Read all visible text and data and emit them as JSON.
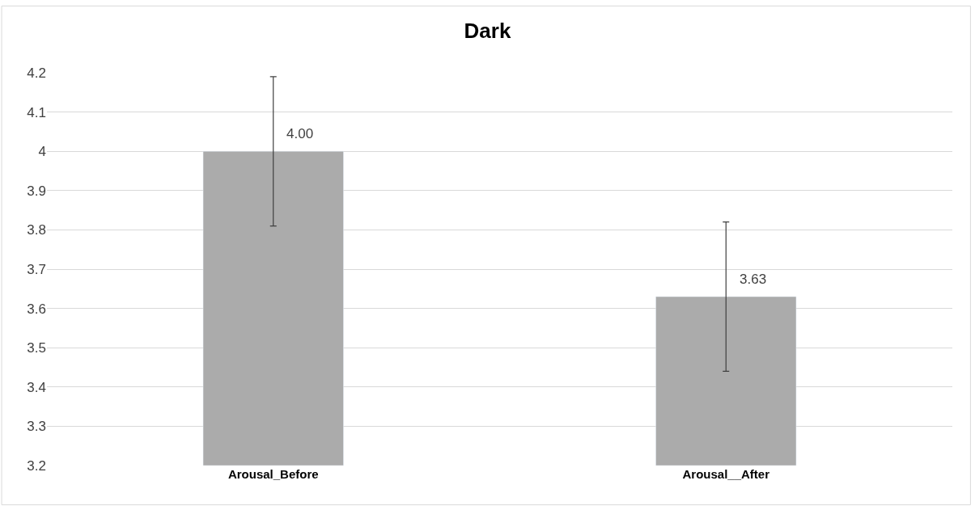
{
  "chart_data": {
    "type": "bar",
    "title": "Dark",
    "categories": [
      "Arousal_Before",
      "Arousal__After"
    ],
    "values": [
      4.0,
      3.63
    ],
    "color": "#ababab",
    "errors": [
      0.19,
      0.19
    ],
    "value_labels": [
      "4.00",
      "3.63"
    ],
    "ylim": [
      3.2,
      4.2
    ],
    "yticks": [
      3.2,
      3.3,
      3.4,
      3.5,
      3.6,
      3.7,
      3.8,
      3.9,
      4,
      4.1,
      4.2
    ],
    "grid": "y"
  }
}
